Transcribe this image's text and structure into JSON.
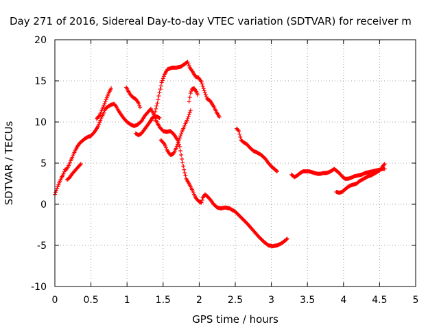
{
  "chart_data": {
    "type": "scatter",
    "title": "Day 271 of 2016, Sidereal Day-to-day VTEC variation (SDTVAR) for receiver m",
    "xlabel": "GPS time / hours",
    "ylabel": "SDTVAR / TECUs",
    "xlim": [
      0,
      5
    ],
    "ylim": [
      -10,
      20
    ],
    "xticks": [
      0,
      0.5,
      1,
      1.5,
      2,
      2.5,
      3,
      3.5,
      4,
      4.5,
      5
    ],
    "xtick_labels": [
      "0",
      "0.5",
      "1",
      "1.5",
      "2",
      "2.5",
      "3",
      "3.5",
      "4",
      "4.5",
      "5"
    ],
    "yticks": [
      -10,
      -5,
      0,
      5,
      10,
      15,
      20
    ],
    "ytick_labels": [
      "-10",
      "-5",
      "0",
      "5",
      "10",
      "15",
      "20"
    ],
    "grid": true,
    "marker": "plus",
    "color": "#ff0000",
    "series": [
      {
        "segments": [
          [
            [
              0.0,
              1.2
            ],
            [
              0.03,
              1.9
            ],
            [
              0.06,
              2.6
            ],
            [
              0.09,
              3.2
            ],
            [
              0.12,
              3.7
            ],
            [
              0.14,
              4.2
            ],
            [
              0.17,
              4.3
            ],
            [
              0.2,
              4.9
            ],
            [
              0.24,
              5.7
            ],
            [
              0.28,
              6.5
            ],
            [
              0.31,
              7.0
            ],
            [
              0.35,
              7.5
            ],
            [
              0.38,
              7.7
            ],
            [
              0.42,
              8.0
            ],
            [
              0.46,
              8.2
            ],
            [
              0.5,
              8.3
            ],
            [
              0.55,
              8.8
            ],
            [
              0.6,
              9.5
            ],
            [
              0.63,
              10.2
            ],
            [
              0.67,
              11.0
            ],
            [
              0.7,
              11.6
            ],
            [
              0.74,
              11.9
            ],
            [
              0.78,
              12.1
            ],
            [
              0.82,
              12.2
            ],
            [
              0.85,
              11.9
            ],
            [
              0.88,
              11.4
            ],
            [
              0.91,
              11.0
            ],
            [
              0.95,
              10.5
            ],
            [
              1.0,
              10.0
            ],
            [
              1.05,
              9.7
            ],
            [
              1.1,
              9.5
            ],
            [
              1.15,
              9.7
            ],
            [
              1.2,
              10.1
            ],
            [
              1.25,
              10.8
            ],
            [
              1.3,
              11.3
            ],
            [
              1.33,
              11.6
            ],
            [
              1.36,
              11.1
            ],
            [
              1.4,
              10.2
            ],
            [
              1.45,
              9.4
            ],
            [
              1.5,
              8.9
            ],
            [
              1.55,
              8.8
            ],
            [
              1.6,
              8.9
            ],
            [
              1.65,
              8.5
            ],
            [
              1.7,
              7.8
            ],
            [
              1.73,
              7.0
            ],
            [
              1.76,
              5.5
            ],
            [
              1.79,
              4.2
            ],
            [
              1.82,
              3.1
            ],
            [
              1.86,
              2.5
            ],
            [
              1.9,
              1.8
            ],
            [
              1.95,
              0.8
            ],
            [
              2.0,
              0.3
            ],
            [
              2.03,
              0.2
            ],
            [
              2.05,
              0.8
            ],
            [
              2.08,
              1.2
            ],
            [
              2.12,
              0.9
            ],
            [
              2.16,
              0.5
            ],
            [
              2.2,
              0.0
            ],
            [
              2.25,
              -0.4
            ],
            [
              2.3,
              -0.5
            ],
            [
              2.36,
              -0.4
            ],
            [
              2.42,
              -0.5
            ],
            [
              2.5,
              -0.9
            ],
            [
              2.58,
              -1.6
            ],
            [
              2.66,
              -2.3
            ],
            [
              2.74,
              -3.1
            ],
            [
              2.82,
              -3.9
            ],
            [
              2.9,
              -4.6
            ],
            [
              2.96,
              -5.0
            ],
            [
              3.02,
              -5.1
            ],
            [
              3.08,
              -5.0
            ],
            [
              3.13,
              -4.8
            ],
            [
              3.18,
              -4.5
            ],
            [
              3.22,
              -4.2
            ]
          ],
          [
            [
              0.17,
              3.0
            ],
            [
              0.2,
              3.2
            ],
            [
              0.24,
              3.7
            ],
            [
              0.28,
              4.1
            ],
            [
              0.32,
              4.5
            ],
            [
              0.36,
              4.9
            ]
          ],
          [
            [
              0.58,
              10.4
            ],
            [
              0.62,
              10.8
            ],
            [
              0.66,
              11.6
            ],
            [
              0.7,
              12.5
            ],
            [
              0.74,
              13.4
            ],
            [
              0.78,
              14.1
            ]
          ],
          [
            [
              0.99,
              14.2
            ],
            [
              1.04,
              13.4
            ],
            [
              1.08,
              13.0
            ],
            [
              1.12,
              12.8
            ],
            [
              1.16,
              12.3
            ],
            [
              1.18,
              11.8
            ]
          ],
          [
            [
              1.12,
              8.6
            ],
            [
              1.16,
              8.4
            ],
            [
              1.2,
              8.6
            ],
            [
              1.25,
              9.2
            ],
            [
              1.3,
              9.8
            ],
            [
              1.35,
              10.5
            ],
            [
              1.4,
              10.7
            ],
            [
              1.45,
              10.5
            ]
          ],
          [
            [
              1.47,
              7.8
            ],
            [
              1.52,
              7.3
            ],
            [
              1.56,
              6.5
            ],
            [
              1.6,
              6.0
            ],
            [
              1.64,
              6.1
            ],
            [
              1.68,
              6.8
            ],
            [
              1.72,
              7.8
            ],
            [
              1.76,
              8.8
            ],
            [
              1.8,
              9.6
            ],
            [
              1.84,
              10.4
            ],
            [
              1.88,
              11.4
            ]
          ],
          [
            [
              1.34,
              10.2
            ],
            [
              1.38,
              10.9
            ],
            [
              1.42,
              12.3
            ],
            [
              1.45,
              13.6
            ],
            [
              1.48,
              14.8
            ],
            [
              1.52,
              15.8
            ],
            [
              1.56,
              16.4
            ],
            [
              1.62,
              16.6
            ],
            [
              1.68,
              16.6
            ],
            [
              1.74,
              16.7
            ],
            [
              1.79,
              17.0
            ],
            [
              1.84,
              17.3
            ],
            [
              1.87,
              16.6
            ],
            [
              1.91,
              16.1
            ],
            [
              1.95,
              15.5
            ],
            [
              1.99,
              15.4
            ],
            [
              2.03,
              14.9
            ],
            [
              2.07,
              13.8
            ],
            [
              2.11,
              12.8
            ],
            [
              2.15,
              12.6
            ],
            [
              2.2,
              11.9
            ],
            [
              2.24,
              11.2
            ],
            [
              2.28,
              10.6
            ]
          ],
          [
            [
              1.86,
              12.5
            ],
            [
              1.88,
              13.5
            ],
            [
              1.9,
              14.0
            ],
            [
              1.93,
              14.1
            ],
            [
              1.96,
              13.7
            ],
            [
              1.98,
              13.3
            ]
          ],
          [
            [
              2.52,
              9.2
            ],
            [
              2.55,
              8.9
            ],
            [
              2.58,
              7.8
            ],
            [
              2.62,
              7.5
            ],
            [
              2.66,
              7.3
            ],
            [
              2.7,
              6.9
            ],
            [
              2.75,
              6.5
            ],
            [
              2.8,
              6.3
            ],
            [
              2.86,
              6.0
            ],
            [
              2.92,
              5.5
            ],
            [
              2.96,
              5.0
            ],
            [
              3.0,
              4.6
            ],
            [
              3.04,
              4.3
            ],
            [
              3.08,
              4.0
            ]
          ],
          [
            [
              3.28,
              3.6
            ],
            [
              3.32,
              3.3
            ],
            [
              3.36,
              3.5
            ],
            [
              3.4,
              3.8
            ],
            [
              3.44,
              4.0
            ],
            [
              3.48,
              4.0
            ],
            [
              3.52,
              4.0
            ],
            [
              3.56,
              3.9
            ],
            [
              3.6,
              3.8
            ],
            [
              3.64,
              3.7
            ],
            [
              3.68,
              3.7
            ],
            [
              3.72,
              3.8
            ],
            [
              3.76,
              3.8
            ],
            [
              3.8,
              3.9
            ],
            [
              3.84,
              4.1
            ],
            [
              3.87,
              4.3
            ],
            [
              3.9,
              4.1
            ],
            [
              3.94,
              3.8
            ],
            [
              3.98,
              3.4
            ],
            [
              4.02,
              3.1
            ],
            [
              4.06,
              3.1
            ],
            [
              4.1,
              3.2
            ],
            [
              4.15,
              3.4
            ],
            [
              4.2,
              3.5
            ],
            [
              4.25,
              3.6
            ],
            [
              4.3,
              3.8
            ],
            [
              4.35,
              3.9
            ],
            [
              4.4,
              4.0
            ],
            [
              4.45,
              4.1
            ],
            [
              4.5,
              4.2
            ],
            [
              4.54,
              4.3
            ],
            [
              4.57,
              4.3
            ]
          ],
          [
            [
              3.9,
              1.5
            ],
            [
              3.94,
              1.4
            ],
            [
              3.98,
              1.5
            ],
            [
              4.02,
              1.8
            ],
            [
              4.06,
              2.1
            ],
            [
              4.1,
              2.3
            ],
            [
              4.14,
              2.4
            ],
            [
              4.18,
              2.5
            ],
            [
              4.22,
              2.8
            ],
            [
              4.26,
              3.0
            ],
            [
              4.3,
              3.2
            ],
            [
              4.34,
              3.4
            ],
            [
              4.38,
              3.5
            ],
            [
              4.42,
              3.7
            ],
            [
              4.46,
              3.9
            ],
            [
              4.5,
              4.1
            ],
            [
              4.53,
              4.4
            ],
            [
              4.55,
              4.7
            ],
            [
              4.57,
              4.9
            ]
          ]
        ]
      }
    ]
  }
}
